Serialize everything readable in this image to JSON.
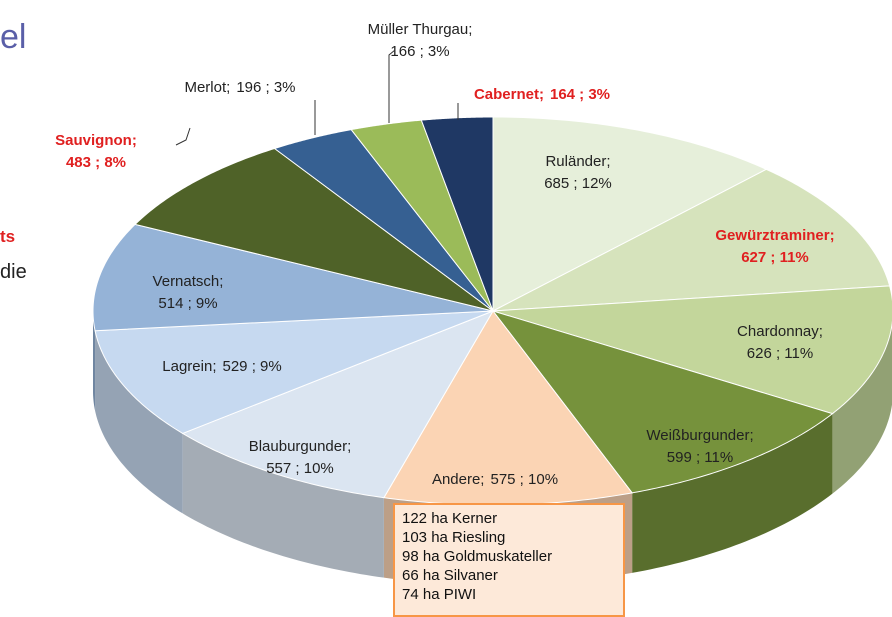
{
  "slide_fragments": {
    "title": "el",
    "bold": "ts",
    "text": "die"
  },
  "chart_data": {
    "type": "pie3d",
    "categories": [
      "Ruländer;",
      "Gewürztraminer;",
      "Chardonnay;",
      "Weißburgunder;",
      "Andere;",
      "Blauburgunder;",
      "Lagrein;",
      "Vernatsch;",
      "Sauvignon;",
      "Merlot;",
      "Müller Thurgau;",
      "Cabernet;"
    ],
    "values": [
      685,
      627,
      626,
      599,
      575,
      557,
      529,
      514,
      483,
      196,
      166,
      164
    ],
    "value_labels": [
      "685 ; 12%",
      "627 ; 11%",
      "626 ; 11%",
      "599 ; 11%",
      "575 ; 10%",
      "557 ; 10%",
      "529 ; 9%",
      "514 ; 9%",
      "483 ; 8%",
      "196 ; 3%",
      "166 ; 3%",
      "164 ; 3%"
    ],
    "colors": [
      "#e6efda",
      "#d6e3bc",
      "#c3d69b",
      "#76923c",
      "#fbd4b4",
      "#dbe5f1",
      "#c6d9f0",
      "#95b3d7",
      "#4f6228",
      "#366092",
      "#9bbb59",
      "#1f3864"
    ],
    "label_colors": [
      "#222",
      "#e02020",
      "#222",
      "#222",
      "#222",
      "#222",
      "#222",
      "#222",
      "#e02020",
      "#222",
      "#222",
      "#e02020"
    ],
    "annotation": [
      "122 ha Kerner",
      "103 ha Riesling",
      "98 ha Goldmuskateller",
      "66 ha Silvaner",
      "74 ha PIWI"
    ]
  }
}
